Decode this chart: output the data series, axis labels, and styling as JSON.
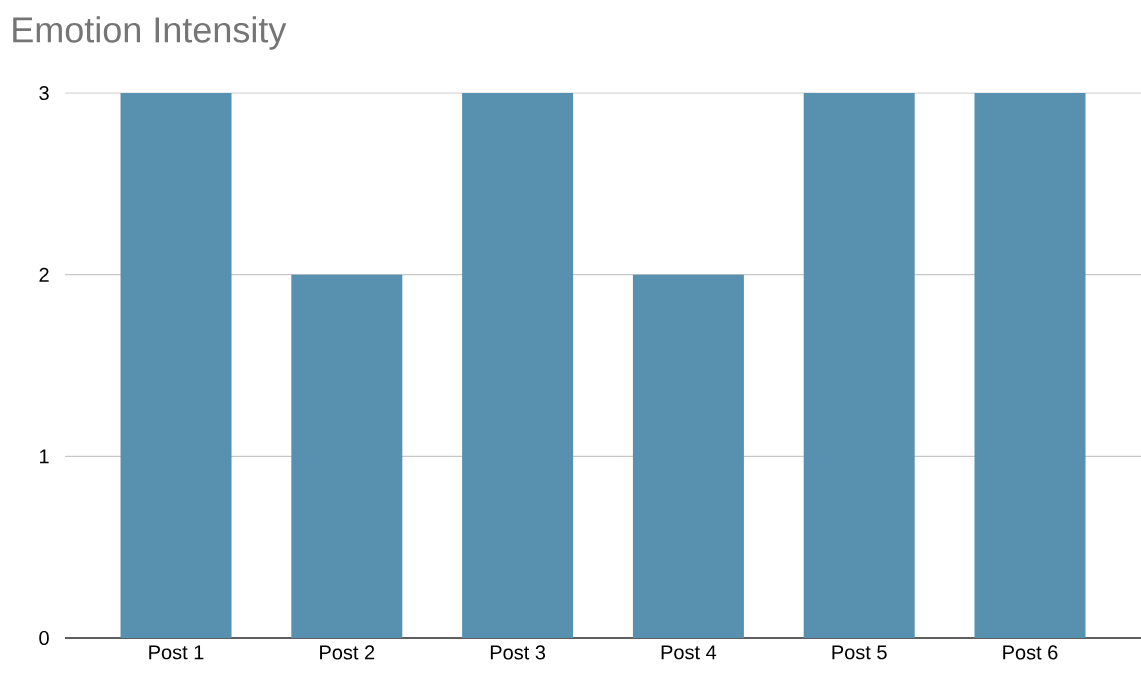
{
  "chart_data": {
    "type": "bar",
    "title": "Emotion Intensity",
    "categories": [
      "Post 1",
      "Post 2",
      "Post 3",
      "Post 4",
      "Post 5",
      "Post 6"
    ],
    "values": [
      3,
      2,
      3,
      2,
      3,
      3
    ],
    "color": "#5891b0",
    "ylim": [
      0,
      3
    ],
    "yticks": [
      0,
      1,
      2,
      3
    ],
    "grid": "y"
  }
}
